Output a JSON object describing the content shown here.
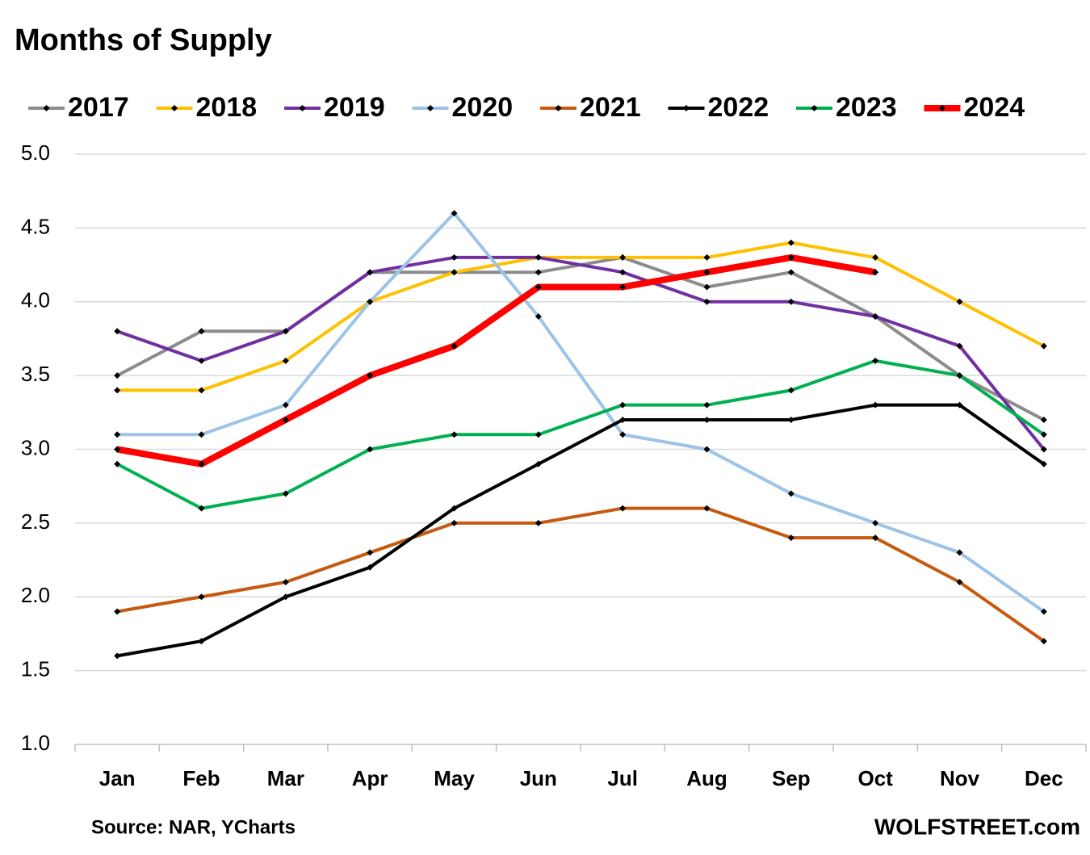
{
  "chart_data": {
    "type": "line",
    "title": "Months of Supply",
    "categories": [
      "Jan",
      "Feb",
      "Mar",
      "Apr",
      "May",
      "Jun",
      "Jul",
      "Aug",
      "Sep",
      "Oct",
      "Nov",
      "Dec"
    ],
    "series": [
      {
        "name": "2017",
        "color": "#8c8c8c",
        "values": [
          3.5,
          3.8,
          3.8,
          4.2,
          4.2,
          4.2,
          4.3,
          4.1,
          4.2,
          3.9,
          3.5,
          3.2
        ]
      },
      {
        "name": "2018",
        "color": "#ffc000",
        "values": [
          3.4,
          3.4,
          3.6,
          4.0,
          4.2,
          4.3,
          4.3,
          4.3,
          4.4,
          4.3,
          4.0,
          3.7
        ]
      },
      {
        "name": "2019",
        "color": "#7030a0",
        "values": [
          3.8,
          3.6,
          3.8,
          4.2,
          4.3,
          4.3,
          4.2,
          4.0,
          4.0,
          3.9,
          3.7,
          3.0
        ]
      },
      {
        "name": "2020",
        "color": "#9dc3e6",
        "values": [
          3.1,
          3.1,
          3.3,
          4.0,
          4.6,
          3.9,
          3.1,
          3.0,
          2.7,
          2.5,
          2.3,
          1.9
        ]
      },
      {
        "name": "2021",
        "color": "#c55a11",
        "values": [
          1.9,
          2.0,
          2.1,
          2.3,
          2.5,
          2.5,
          2.6,
          2.6,
          2.4,
          2.4,
          2.1,
          1.7
        ]
      },
      {
        "name": "2022",
        "color": "#000000",
        "values": [
          1.6,
          1.7,
          2.0,
          2.2,
          2.6,
          2.9,
          3.2,
          3.2,
          3.2,
          3.3,
          3.3,
          2.9
        ]
      },
      {
        "name": "2023",
        "color": "#00b050",
        "values": [
          2.9,
          2.6,
          2.7,
          3.0,
          3.1,
          3.1,
          3.3,
          3.3,
          3.4,
          3.6,
          3.5,
          3.1
        ]
      },
      {
        "name": "2024",
        "color": "#ff0000",
        "values": [
          3.0,
          2.9,
          3.2,
          3.5,
          3.7,
          4.1,
          4.1,
          4.2,
          4.3,
          4.2,
          null,
          null
        ]
      }
    ],
    "ylim": [
      1.0,
      5.0
    ],
    "yticks": [
      {
        "value": 1.0,
        "label": "1.0"
      },
      1.5,
      {
        "value": 2.0,
        "label": "2.0"
      },
      2.5,
      {
        "value": 3.0,
        "label": "3.0"
      },
      3.5,
      {
        "value": 4.0,
        "label": "4.0"
      },
      4.5,
      {
        "value": 5.0,
        "label": "5.0"
      }
    ],
    "grid": true,
    "legend": "top",
    "source": "Source: NAR, YCharts",
    "credit": "WOLFSTREET.com"
  }
}
